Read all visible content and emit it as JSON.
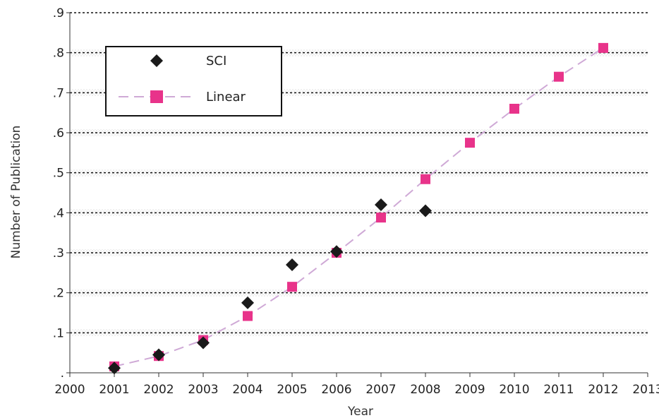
{
  "chart_data": {
    "type": "scatter",
    "xlabel": "Year",
    "ylabel": "Number of Publication",
    "xlim": [
      2000,
      2013
    ],
    "ylim": [
      0,
      0.9
    ],
    "x_ticks": [
      "2000",
      "2001",
      "2002",
      "2003",
      "2004",
      "2005",
      "2006",
      "2007",
      "2008",
      "2009",
      "2010",
      "2011",
      "2012",
      "2013"
    ],
    "y_ticks": [
      ".",
      ".1",
      ".2",
      ".3",
      ".4",
      ".5",
      ".6",
      ".7",
      ".8",
      ".9"
    ],
    "grid": "horizontal-dashed",
    "legend_position": "top-left",
    "series": [
      {
        "name": "SCI",
        "marker": "diamond",
        "color": "#1a1a1a",
        "x": [
          2001,
          2002,
          2003,
          2004,
          2005,
          2006,
          2007,
          2008
        ],
        "y": [
          0.012,
          0.045,
          0.075,
          0.175,
          0.27,
          0.303,
          0.42,
          0.405
        ]
      },
      {
        "name": "Linear",
        "marker": "square",
        "line": "dashed",
        "color": "#e8338a",
        "line_color": "#cfa9d6",
        "x": [
          2001,
          2002,
          2003,
          2004,
          2005,
          2006,
          2007,
          2008,
          2009,
          2010,
          2011,
          2012
        ],
        "y": [
          0.016,
          0.042,
          0.082,
          0.142,
          0.215,
          0.3,
          0.388,
          0.484,
          0.575,
          0.66,
          0.74,
          0.812
        ]
      }
    ]
  }
}
